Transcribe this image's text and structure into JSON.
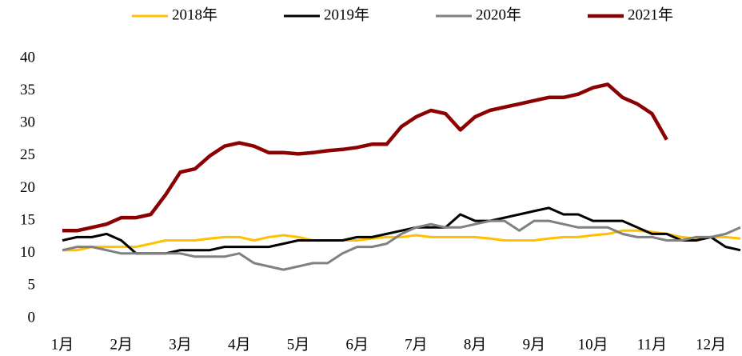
{
  "chart_data": {
    "type": "line",
    "categories": [
      "1月",
      null,
      null,
      null,
      "2月",
      null,
      null,
      null,
      "3月",
      null,
      null,
      null,
      "4月",
      null,
      null,
      null,
      "5月",
      null,
      null,
      null,
      "6月",
      null,
      null,
      null,
      "7月",
      null,
      null,
      null,
      "8月",
      null,
      null,
      null,
      "9月",
      null,
      null,
      null,
      "10月",
      null,
      null,
      null,
      "11月",
      null,
      null,
      null,
      "12月",
      null,
      null
    ],
    "series": [
      {
        "name": "2018年",
        "color": "#FFC000",
        "values": [
          10.5,
          10.5,
          11,
          11,
          11,
          11,
          11.5,
          12,
          12,
          12,
          12.3,
          12.5,
          12.5,
          12,
          12.5,
          12.8,
          12.5,
          12,
          12,
          12,
          12,
          12.3,
          12.5,
          12.5,
          12.8,
          12.5,
          12.5,
          12.5,
          12.5,
          12.3,
          12,
          12,
          12,
          12.3,
          12.5,
          12.5,
          12.8,
          13,
          13.5,
          13.5,
          13.3,
          13,
          12.5,
          12.3,
          12.5,
          12.5,
          12.3
        ]
      },
      {
        "name": "2019年",
        "color": "#000000",
        "values": [
          12,
          12.5,
          12.5,
          13,
          12,
          10,
          10,
          10,
          10.5,
          10.5,
          10.5,
          11,
          11,
          11,
          11,
          11.5,
          12,
          12,
          12,
          12,
          12.5,
          12.5,
          13,
          13.5,
          14,
          14,
          14,
          16,
          15,
          15,
          15.5,
          16,
          16.5,
          17,
          16,
          16,
          15,
          15,
          15,
          14,
          13,
          13,
          12,
          12,
          12.5,
          11,
          10.5
        ]
      },
      {
        "name": "2020年",
        "color": "#808080",
        "values": [
          10.5,
          11,
          11,
          10.5,
          10,
          10,
          10,
          10,
          10,
          9.5,
          9.5,
          9.5,
          10,
          8.5,
          8,
          7.5,
          8,
          8.5,
          8.5,
          10,
          11,
          11,
          11.5,
          13,
          14,
          14.5,
          14,
          14,
          14.5,
          15,
          15,
          13.5,
          15,
          15,
          14.5,
          14,
          14,
          14,
          13,
          12.5,
          12.5,
          12,
          12,
          12.5,
          12.5,
          13,
          14
        ]
      },
      {
        "name": "2021年",
        "color": "#8B0000",
        "values": [
          13.5,
          13.5,
          14,
          14.5,
          15.5,
          15.5,
          16,
          19,
          22.5,
          23,
          25,
          26.5,
          27,
          26.5,
          25.5,
          25.5,
          25.3,
          25.5,
          25.8,
          26,
          26.3,
          26.8,
          26.8,
          29.5,
          31,
          32,
          31.5,
          29,
          31,
          32,
          32.5,
          33,
          33.5,
          34,
          34,
          34.5,
          35.5,
          36,
          34,
          33,
          31.5,
          27.5,
          null,
          null,
          null,
          null,
          null
        ]
      }
    ],
    "ylim": [
      0,
      40
    ],
    "yticks": [
      0,
      5,
      10,
      15,
      20,
      25,
      30,
      35,
      40
    ],
    "grid": false,
    "legend": "top"
  }
}
